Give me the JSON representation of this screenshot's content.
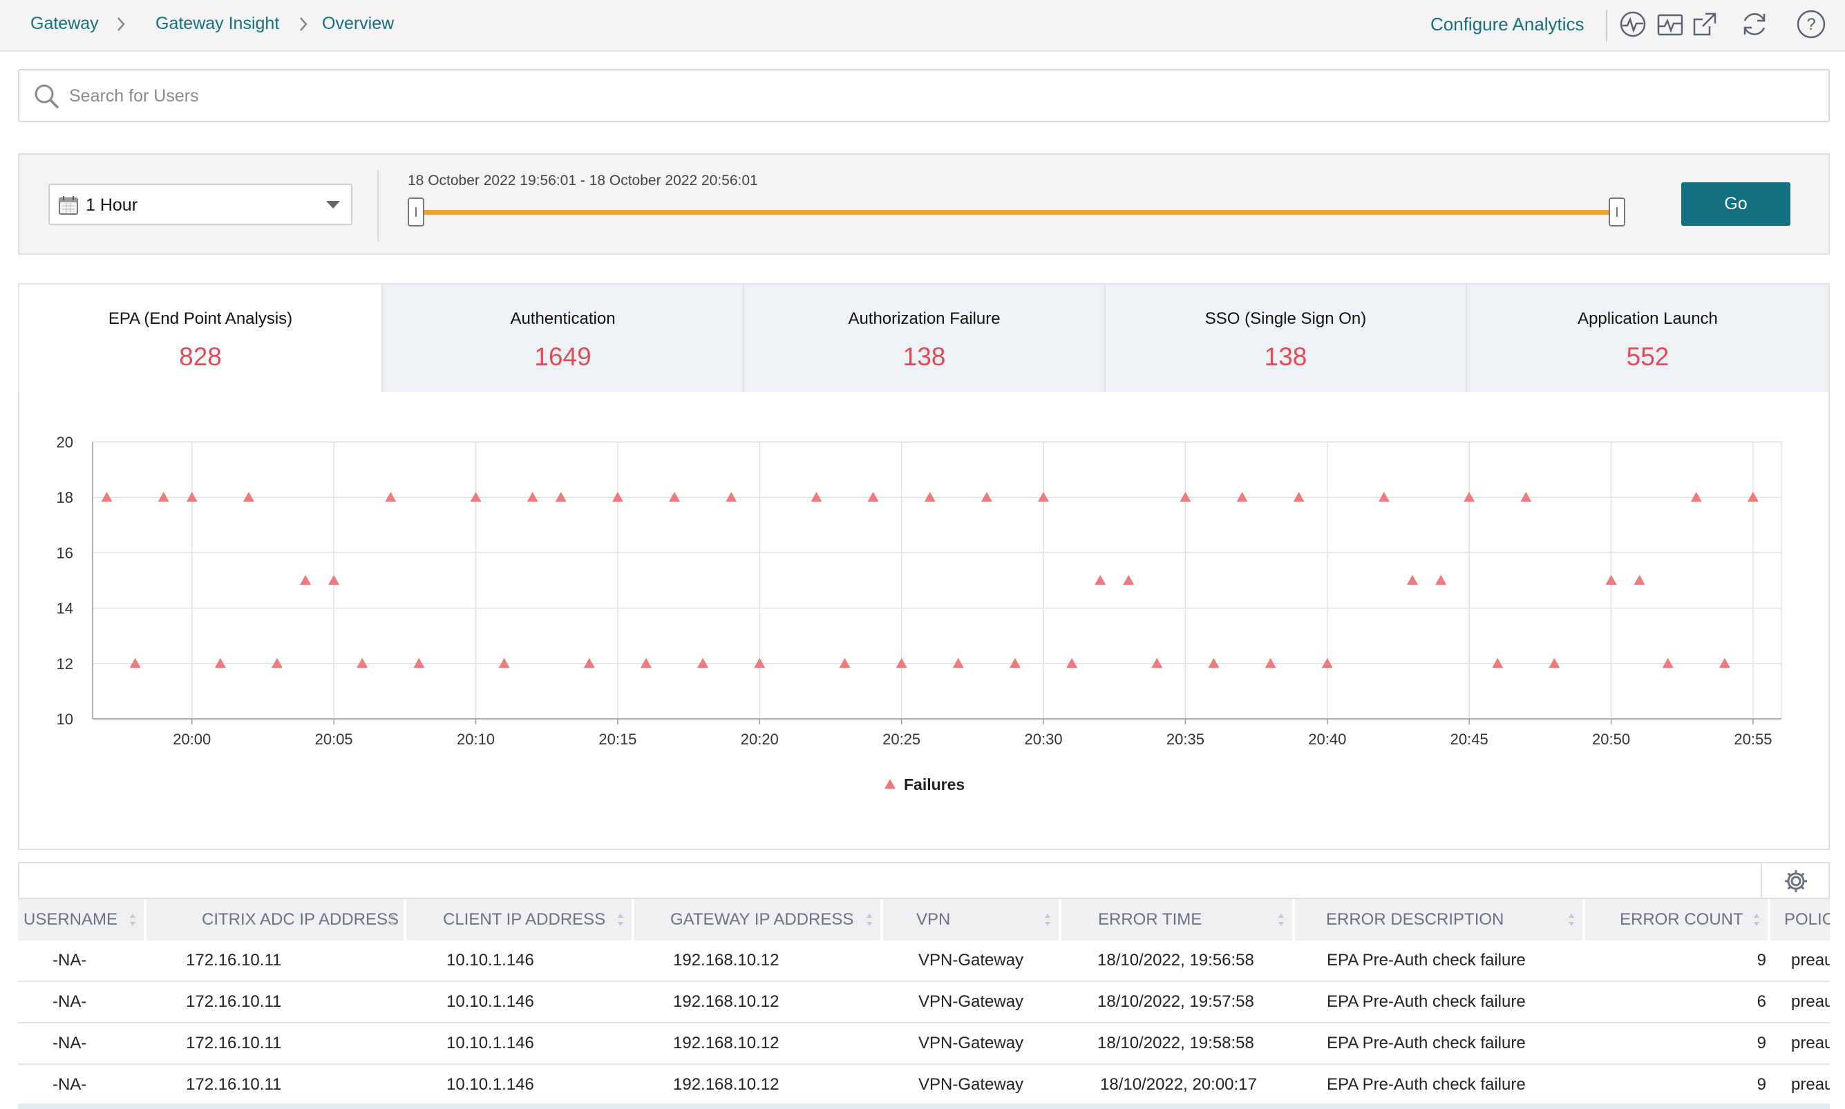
{
  "breadcrumb": [
    "Gateway",
    "Gateway Insight",
    "Overview"
  ],
  "header": {
    "configure_link": "Configure Analytics",
    "icons": [
      "pulse-icon",
      "activity-chart-icon",
      "external-link-icon",
      "refresh-icon",
      "help-icon"
    ],
    "help_label": "?"
  },
  "search": {
    "placeholder": "Search for Users",
    "value": ""
  },
  "time_range": {
    "selected": "1 Hour",
    "range_text": "18 October 2022 19:56:01 - 18 October 2022 20:56:01",
    "go_label": "Go"
  },
  "tiles": [
    {
      "title": "EPA (End Point Analysis)",
      "value": "828",
      "active": true
    },
    {
      "title": "Authentication",
      "value": "1649",
      "active": false
    },
    {
      "title": "Authorization Failure",
      "value": "138",
      "active": false
    },
    {
      "title": "SSO (Single Sign On)",
      "value": "138",
      "active": false
    },
    {
      "title": "Application Launch",
      "value": "552",
      "active": false
    }
  ],
  "chart_data": {
    "type": "scatter",
    "title": "",
    "xlabel": "",
    "ylabel": "",
    "ylim": [
      10,
      20
    ],
    "xlim": [
      "19:56:30",
      "20:56:00"
    ],
    "y_ticks": [
      "10",
      "12",
      "14",
      "16",
      "18",
      "20"
    ],
    "x_ticks": [
      "20:00",
      "20:05",
      "20:10",
      "20:15",
      "20:20",
      "20:25",
      "20:30",
      "20:35",
      "20:40",
      "20:45",
      "20:50",
      "20:55"
    ],
    "legend_position": "bottom",
    "grid": true,
    "series": [
      {
        "name": "Failures",
        "color": "#ef7a7e",
        "marker": "triangle",
        "points": [
          [
            "19:57",
            18
          ],
          [
            "19:58",
            12
          ],
          [
            "19:59",
            18
          ],
          [
            "20:00",
            18
          ],
          [
            "20:01",
            12
          ],
          [
            "20:02",
            18
          ],
          [
            "20:03",
            12
          ],
          [
            "20:04",
            15
          ],
          [
            "20:05",
            15
          ],
          [
            "20:06",
            12
          ],
          [
            "20:07",
            18
          ],
          [
            "20:08",
            12
          ],
          [
            "20:10",
            18
          ],
          [
            "20:11",
            12
          ],
          [
            "20:12",
            18
          ],
          [
            "20:13",
            18
          ],
          [
            "20:14",
            12
          ],
          [
            "20:15",
            18
          ],
          [
            "20:16",
            12
          ],
          [
            "20:17",
            18
          ],
          [
            "20:18",
            12
          ],
          [
            "20:19",
            18
          ],
          [
            "20:20",
            12
          ],
          [
            "20:22",
            18
          ],
          [
            "20:23",
            12
          ],
          [
            "20:24",
            18
          ],
          [
            "20:25",
            12
          ],
          [
            "20:26",
            18
          ],
          [
            "20:27",
            12
          ],
          [
            "20:28",
            18
          ],
          [
            "20:29",
            12
          ],
          [
            "20:30",
            18
          ],
          [
            "20:31",
            12
          ],
          [
            "20:32",
            15
          ],
          [
            "20:33",
            15
          ],
          [
            "20:34",
            12
          ],
          [
            "20:35",
            18
          ],
          [
            "20:36",
            12
          ],
          [
            "20:37",
            18
          ],
          [
            "20:38",
            12
          ],
          [
            "20:39",
            18
          ],
          [
            "20:40",
            12
          ],
          [
            "20:42",
            18
          ],
          [
            "20:43",
            15
          ],
          [
            "20:44",
            15
          ],
          [
            "20:45",
            18
          ],
          [
            "20:46",
            12
          ],
          [
            "20:47",
            18
          ],
          [
            "20:48",
            12
          ],
          [
            "20:50",
            15
          ],
          [
            "20:51",
            15
          ],
          [
            "20:52",
            12
          ],
          [
            "20:53",
            18
          ],
          [
            "20:54",
            12
          ],
          [
            "20:55",
            18
          ]
        ]
      }
    ]
  },
  "table": {
    "columns": [
      "USERNAME",
      "CITRIX ADC IP ADDRESS",
      "CLIENT IP ADDRESS",
      "GATEWAY IP ADDRESS",
      "VPN",
      "ERROR TIME",
      "ERROR DESCRIPTION",
      "ERROR COUNT",
      "POLIC"
    ],
    "rows": [
      [
        "-NA-",
        "172.16.10.11",
        "10.10.1.146",
        "192.168.10.12",
        "VPN-Gateway",
        "18/10/2022, 19:56:58",
        "EPA Pre-Auth check failure",
        "9",
        "preau"
      ],
      [
        "-NA-",
        "172.16.10.11",
        "10.10.1.146",
        "192.168.10.12",
        "VPN-Gateway",
        "18/10/2022, 19:57:58",
        "EPA Pre-Auth check failure",
        "6",
        "preau"
      ],
      [
        "-NA-",
        "172.16.10.11",
        "10.10.1.146",
        "192.168.10.12",
        "VPN-Gateway",
        "18/10/2022, 19:58:58",
        "EPA Pre-Auth check failure",
        "9",
        "preau"
      ],
      [
        "-NA-",
        "172.16.10.11",
        "10.10.1.146",
        "192.168.10.12",
        "VPN-Gateway",
        "18/10/2022, 20:00:17",
        "EPA Pre-Auth check failure",
        "9",
        "preau"
      ]
    ]
  }
}
